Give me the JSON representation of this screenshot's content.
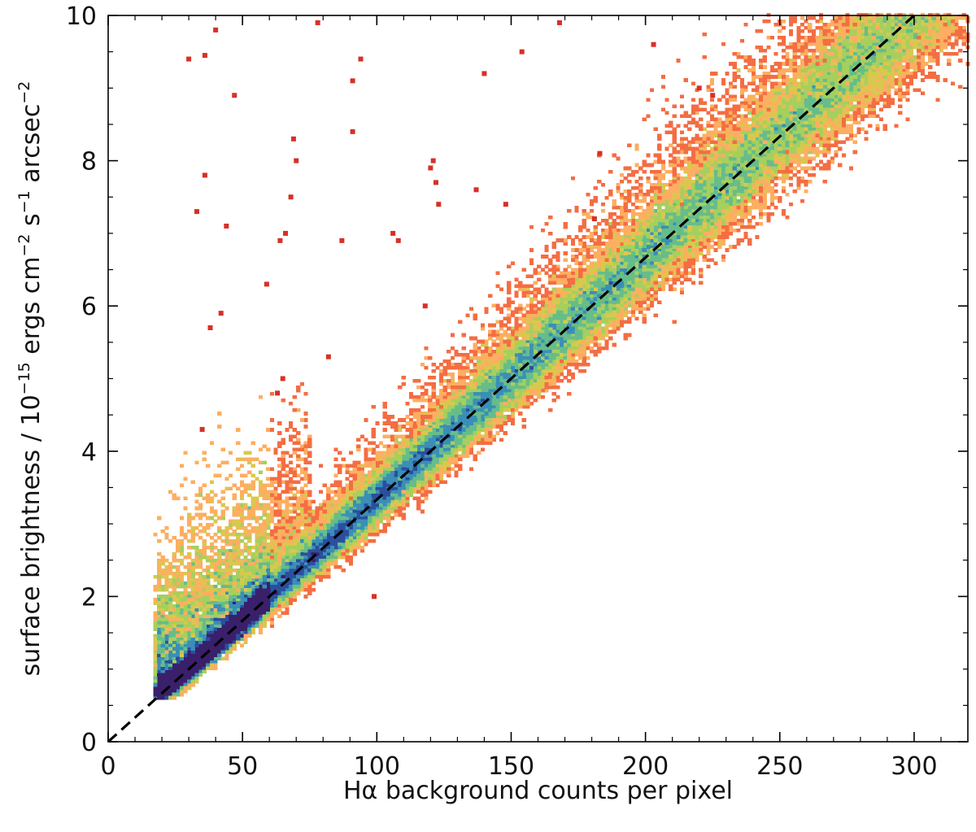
{
  "chart_data": {
    "type": "heatmap",
    "title": "",
    "xlabel": "Hα background counts per pixel",
    "ylabel": {
      "base": "surface brightness / 10",
      "exp": "−15",
      "unit1": " ergs cm",
      "exp2": "−2",
      "unit2": " s",
      "exp3": "−1",
      "unit3": " arcsec",
      "exp4": "−2"
    },
    "xlim": [
      0,
      320
    ],
    "ylim": [
      0,
      10
    ],
    "xticks": [
      0,
      50,
      100,
      150,
      200,
      250,
      300
    ],
    "xtick_labels": [
      "0",
      "50",
      "100",
      "150",
      "200",
      "250",
      "300"
    ],
    "yticks": [
      0,
      2,
      4,
      6,
      8,
      10
    ],
    "ytick_labels": [
      "0",
      "2",
      "4",
      "6",
      "8",
      "10"
    ],
    "grid": false,
    "legend": "none",
    "reference_line": {
      "style": "dashed",
      "color": "#000000",
      "points": [
        [
          0,
          0
        ],
        [
          300,
          10
        ]
      ]
    },
    "colormap": [
      "#d73027",
      "#f46d43",
      "#fdae61",
      "#d9c84e",
      "#a6cf5e",
      "#66bd8a",
      "#3a8fb7",
      "#2b4f9e",
      "#3a1f6b"
    ],
    "density_ridge": {
      "x": [
        20,
        50,
        100,
        150,
        200,
        250,
        300
      ],
      "y": [
        0.67,
        1.67,
        3.33,
        5.0,
        6.67,
        8.33,
        10.0
      ]
    },
    "outlier_points": [
      [
        30,
        9.4
      ],
      [
        36,
        9.45
      ],
      [
        40,
        9.8
      ],
      [
        47,
        8.9
      ],
      [
        33,
        7.3
      ],
      [
        36,
        7.8
      ],
      [
        44,
        7.1
      ],
      [
        42,
        5.9
      ],
      [
        38,
        5.7
      ],
      [
        35,
        4.3
      ],
      [
        59,
        6.3
      ],
      [
        64,
        6.9
      ],
      [
        66,
        7.0
      ],
      [
        68,
        7.5
      ],
      [
        69,
        8.3
      ],
      [
        70,
        8.0
      ],
      [
        91,
        9.1
      ],
      [
        94,
        9.4
      ],
      [
        91,
        8.4
      ],
      [
        78,
        9.9
      ],
      [
        120,
        7.9
      ],
      [
        121,
        8.0
      ],
      [
        122,
        7.7
      ],
      [
        123,
        7.4
      ],
      [
        106,
        7.0
      ],
      [
        108,
        6.9
      ],
      [
        118,
        6.0
      ],
      [
        140,
        9.2
      ],
      [
        154,
        9.5
      ],
      [
        168,
        9.9
      ],
      [
        137,
        7.6
      ],
      [
        148,
        7.4
      ],
      [
        183,
        8.1
      ],
      [
        181,
        7.2
      ],
      [
        203,
        9.6
      ],
      [
        220,
        9.0
      ],
      [
        225,
        8.9
      ],
      [
        99,
        2.0
      ],
      [
        87,
        6.9
      ],
      [
        82,
        5.3
      ],
      [
        65,
        5.0
      ],
      [
        63,
        4.8
      ]
    ]
  }
}
